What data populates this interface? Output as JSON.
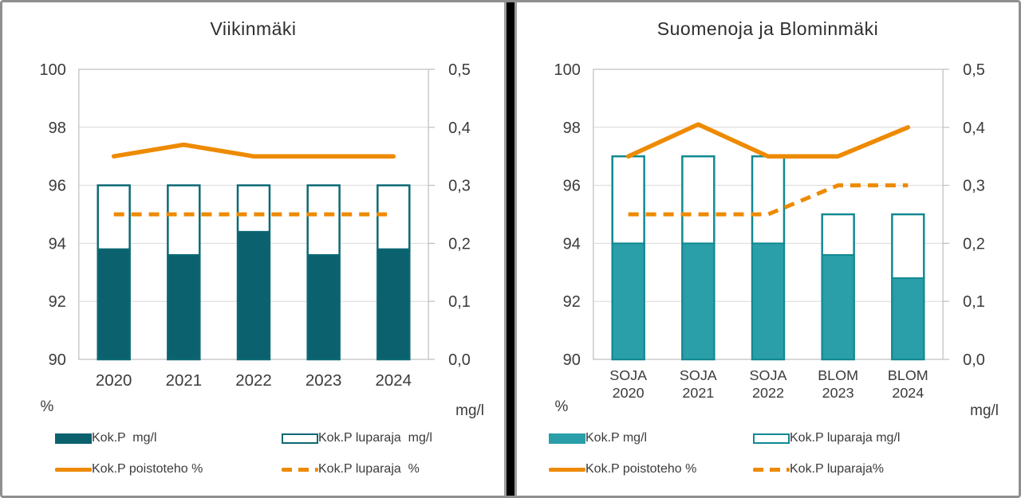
{
  "chart_data": [
    {
      "type": "combo-bar-line",
      "title": "Viikinmäki",
      "categories": [
        "2020",
        "2021",
        "2022",
        "2023",
        "2024"
      ],
      "series": [
        {
          "name": "Kok.P  mg/l",
          "kind": "bar",
          "axis": "right",
          "values": [
            0.19,
            0.18,
            0.22,
            0.18,
            0.19
          ]
        },
        {
          "name": "Kok.P luparaja  mg/l",
          "kind": "bar-outline",
          "axis": "right",
          "values": [
            0.3,
            0.3,
            0.3,
            0.3,
            0.3
          ]
        },
        {
          "name": "Kok.P poistoteho %",
          "kind": "line",
          "axis": "left",
          "values": [
            97.0,
            97.4,
            97.0,
            97.0,
            97.0
          ]
        },
        {
          "name": "Kok.P luparaja  %",
          "kind": "line-dashed",
          "axis": "left",
          "values": [
            95,
            95,
            95,
            95,
            95
          ]
        }
      ],
      "left_axis": {
        "label": "%",
        "min": 90,
        "max": 100,
        "ticks": [
          100,
          98,
          96,
          94,
          92,
          90
        ]
      },
      "right_axis": {
        "label": "mg/l",
        "min": 0,
        "max": 0.5,
        "ticks": [
          "0,5",
          "0,4",
          "0,3",
          "0,2",
          "0,1",
          "0,0"
        ]
      },
      "grid": true,
      "legend_position": "bottom",
      "colors": {
        "bar_fill": "#0b626e",
        "bar_stroke": "#0c6974",
        "line": "#ee8a00",
        "text": "#3b3b3b",
        "gridline": "#d9d9d9",
        "axis": "#bfbfbf"
      }
    },
    {
      "type": "combo-bar-line",
      "title": "Suomenoja ja Blominmäki",
      "categories": [
        [
          "SOJA",
          "2020"
        ],
        [
          "SOJA",
          "2021"
        ],
        [
          "SOJA",
          "2022"
        ],
        [
          "BLOM",
          "2023"
        ],
        [
          "BLOM",
          "2024"
        ]
      ],
      "series": [
        {
          "name": "Kok.P mg/l",
          "kind": "bar",
          "axis": "right",
          "values": [
            0.2,
            0.2,
            0.2,
            0.18,
            0.14
          ]
        },
        {
          "name": "Kok.P luparaja mg/l",
          "kind": "bar-outline",
          "axis": "right",
          "values": [
            0.35,
            0.35,
            0.35,
            0.25,
            0.25
          ]
        },
        {
          "name": "Kok.P poistoteho %",
          "kind": "line",
          "axis": "left",
          "values": [
            97.0,
            98.1,
            97.0,
            97.0,
            98.0
          ]
        },
        {
          "name": "Kok.P luparaja%",
          "kind": "line-dashed",
          "axis": "left",
          "values": [
            95,
            95,
            95,
            96,
            96
          ]
        }
      ],
      "left_axis": {
        "label": "%",
        "min": 90,
        "max": 100,
        "ticks": [
          100,
          98,
          96,
          94,
          92,
          90
        ]
      },
      "right_axis": {
        "label": "mg/l",
        "min": 0,
        "max": 0.5,
        "ticks": [
          "0,5",
          "0,4",
          "0,3",
          "0,2",
          "0,1",
          "0,0"
        ]
      },
      "grid": true,
      "legend_position": "bottom",
      "colors": {
        "bar_fill": "#2a9ea9",
        "bar_stroke": "#118992",
        "line": "#ee8a00",
        "text": "#3b3b3b",
        "gridline": "#d9d9d9",
        "axis": "#bfbfbf"
      }
    }
  ]
}
